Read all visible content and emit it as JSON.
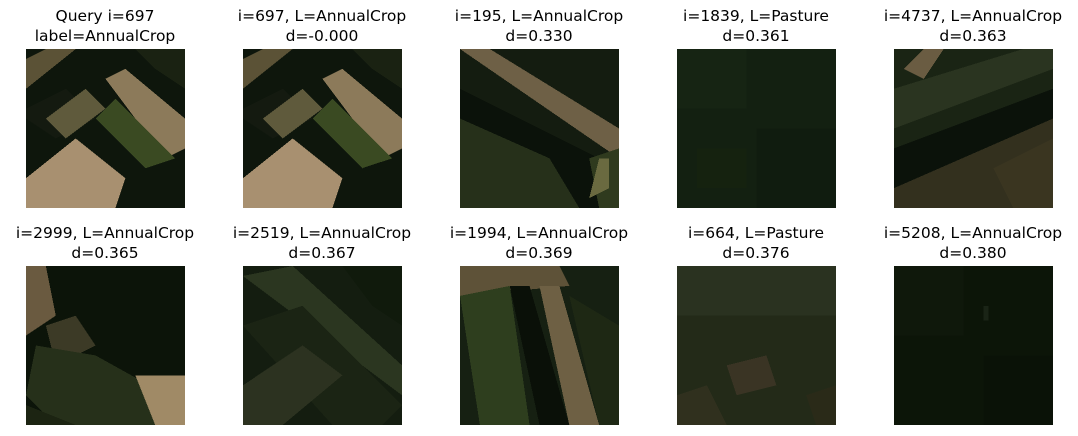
{
  "figure": {
    "rows": [
      [
        {
          "line1": "Query i=697",
          "line2": "label=AnnualCrop",
          "image": "query-field-patch"
        },
        {
          "line1": "i=697, L=AnnualCrop",
          "line2": "d=-0.000",
          "image": "match-1-field-patch"
        },
        {
          "line1": "i=195, L=AnnualCrop",
          "line2": "d=0.330",
          "image": "match-2-field-patch"
        },
        {
          "line1": "i=1839, L=Pasture",
          "line2": "d=0.361",
          "image": "match-3-field-patch"
        },
        {
          "line1": "i=4737, L=AnnualCrop",
          "line2": "d=0.363",
          "image": "match-4-field-patch"
        }
      ],
      [
        {
          "line1": "i=2999, L=AnnualCrop",
          "line2": "d=0.365",
          "image": "match-5-field-patch"
        },
        {
          "line1": "i=2519, L=AnnualCrop",
          "line2": "d=0.367",
          "image": "match-6-field-patch"
        },
        {
          "line1": "i=1994, L=AnnualCrop",
          "line2": "d=0.369",
          "image": "match-7-field-patch"
        },
        {
          "line1": "i=664, L=Pasture",
          "line2": "d=0.376",
          "image": "match-8-field-patch"
        },
        {
          "line1": "i=5208, L=AnnualCrop",
          "line2": "d=0.380",
          "image": "match-9-field-patch"
        }
      ]
    ]
  }
}
